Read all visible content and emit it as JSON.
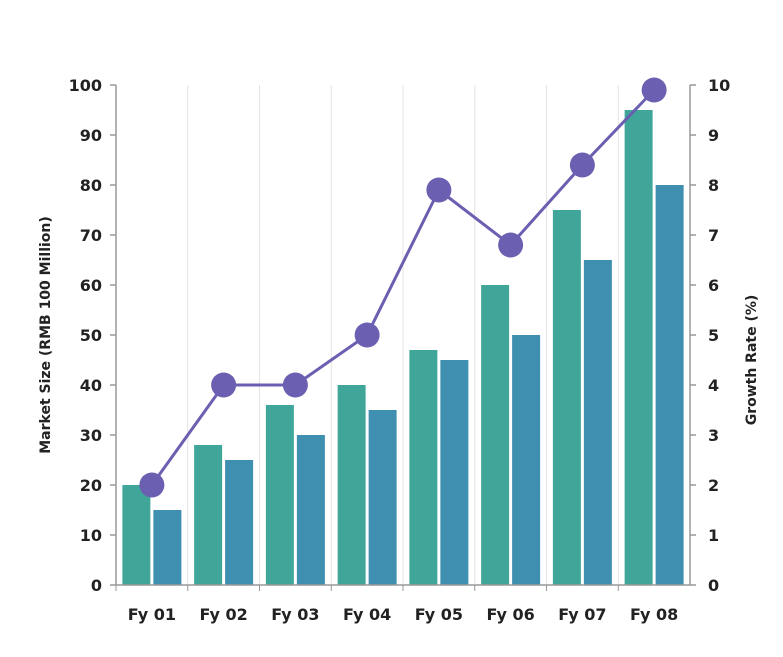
{
  "chart_data": {
    "type": "bar",
    "categories": [
      "Fy 01",
      "Fy 02",
      "Fy 03",
      "Fy 04",
      "Fy 05",
      "Fy 06",
      "Fy 07",
      "Fy 08"
    ],
    "series": [
      {
        "values": [
          20,
          28,
          36,
          40,
          47,
          60,
          75,
          95
        ],
        "color": "#40a69a",
        "axis": "left",
        "kind": "bar"
      },
      {
        "values": [
          15,
          25,
          30,
          35,
          45,
          50,
          65,
          80
        ],
        "color": "#3f8fb0",
        "axis": "left",
        "kind": "bar"
      },
      {
        "values": [
          2,
          4,
          4,
          5,
          7.9,
          6.8,
          8.4,
          9.9
        ],
        "color": "#6a5fb0",
        "axis": "right",
        "kind": "line"
      }
    ],
    "ylabel": "Market Size (RMB 100 Million)",
    "y2label": "Growth Rate (%)",
    "ylim": [
      0,
      100
    ],
    "y2lim": [
      0,
      10
    ],
    "yticks": [
      "0",
      "10",
      "20",
      "30",
      "40",
      "50",
      "60",
      "70",
      "80",
      "90",
      "100"
    ],
    "y2ticks": [
      "0",
      "1",
      "2",
      "3",
      "4",
      "5",
      "6",
      "7",
      "8",
      "9",
      "10"
    ],
    "grid": "vertical",
    "gridColor": "#e4e4e4"
  }
}
